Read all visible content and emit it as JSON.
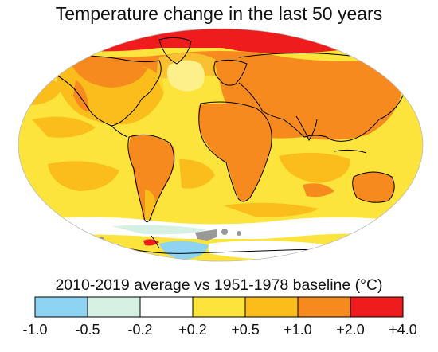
{
  "title": "Temperature change in the last 50 years",
  "subtitle": "2010-2019 average vs 1951-1978 baseline (°C)",
  "legend": {
    "ticks": [
      "-1.0",
      "-0.5",
      "-0.2",
      "+0.2",
      "+0.5",
      "+1.0",
      "+2.0",
      "+4.0"
    ],
    "bins": [
      {
        "from": -1.0,
        "to": -0.5,
        "color": "#8fd3f2"
      },
      {
        "from": -0.5,
        "to": -0.2,
        "color": "#d6f0e4"
      },
      {
        "from": -0.2,
        "to": 0.2,
        "color": "#ffffff"
      },
      {
        "from": 0.2,
        "to": 0.5,
        "color": "#fce43c"
      },
      {
        "from": 0.5,
        "to": 1.0,
        "color": "#fbbd1c"
      },
      {
        "from": 1.0,
        "to": 2.0,
        "color": "#f68a1e"
      },
      {
        "from": 2.0,
        "to": 4.0,
        "color": "#ee1c1c"
      }
    ],
    "no_data_color": "#999999"
  },
  "map": {
    "projection": "robinson",
    "ocean_base_color": "#fce43c",
    "coastline_color": "#000000"
  }
}
